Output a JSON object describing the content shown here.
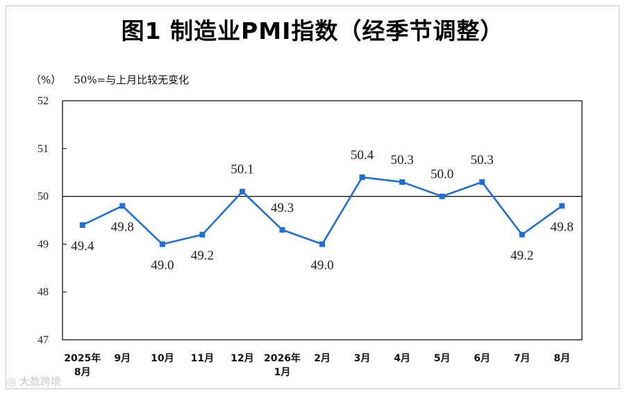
{
  "chart_data": {
    "type": "line",
    "title": "图1 制造业PMI指数（经季节调整）",
    "unit_label": "（%）",
    "note": "50%=与上月比较无变化",
    "categories": [
      "2025年\n8月",
      "9月",
      "10月",
      "11月",
      "12月",
      "2026年\n1月",
      "2月",
      "3月",
      "4月",
      "5月",
      "6月",
      "7月",
      "8月"
    ],
    "values": [
      49.4,
      49.8,
      49.0,
      49.2,
      50.1,
      49.3,
      49.0,
      50.4,
      50.3,
      50.0,
      50.3,
      49.2,
      49.8
    ],
    "data_labels": [
      "49.4",
      "49.8",
      "49.0",
      "49.2",
      "50.1",
      "49.3",
      "49.0",
      "50.4",
      "50.3",
      "50.0",
      "50.3",
      "49.2",
      "49.8"
    ],
    "label_position": [
      "below",
      "below",
      "below",
      "below",
      "above",
      "above",
      "below",
      "above",
      "above",
      "above",
      "above",
      "below",
      "below"
    ],
    "yticks": [
      "47",
      "48",
      "49",
      "50",
      "51",
      "52"
    ],
    "ylim": [
      47,
      52
    ],
    "reference_line": 50,
    "line_color": "#1f6fd1",
    "grid": false,
    "legend": "none"
  },
  "watermark": "大数跨境"
}
